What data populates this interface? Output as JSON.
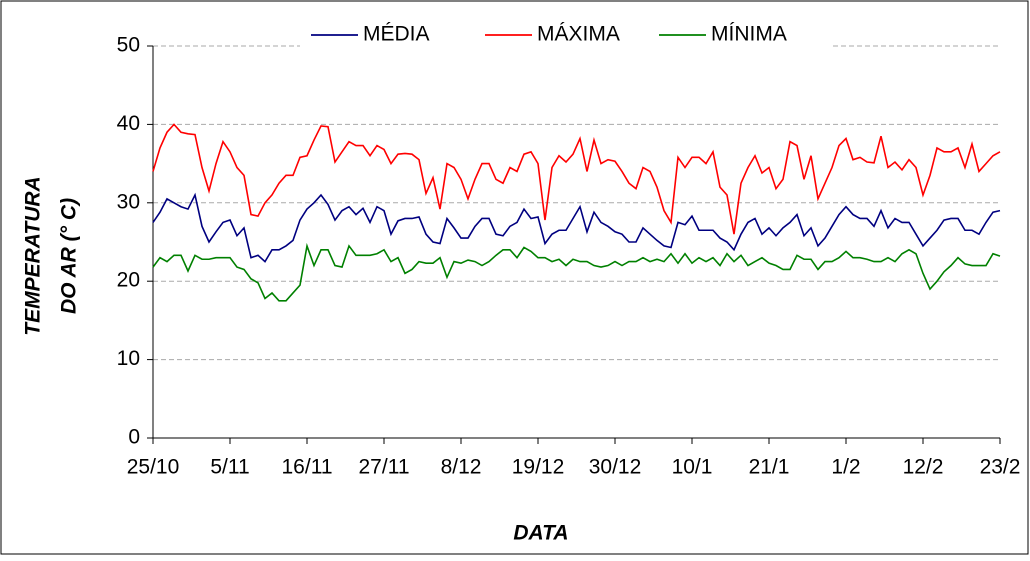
{
  "chart_data": {
    "type": "line",
    "x_label": "DATA",
    "y_label": [
      "TEMPERATURA",
      "DO AR (° C)"
    ],
    "categories": [
      "25/10",
      null,
      null,
      null,
      null,
      null,
      null,
      null,
      null,
      null,
      null,
      "5/11",
      null,
      null,
      null,
      null,
      null,
      null,
      null,
      null,
      null,
      null,
      "16/11",
      null,
      null,
      null,
      null,
      null,
      null,
      null,
      null,
      null,
      null,
      "27/11",
      null,
      null,
      null,
      null,
      null,
      null,
      null,
      null,
      null,
      null,
      "8/12",
      null,
      null,
      null,
      null,
      null,
      null,
      null,
      null,
      null,
      null,
      "19/12",
      null,
      null,
      null,
      null,
      null,
      null,
      null,
      null,
      null,
      null,
      "30/12",
      null,
      null,
      null,
      null,
      null,
      null,
      null,
      null,
      null,
      null,
      "10/1",
      null,
      null,
      null,
      null,
      null,
      null,
      null,
      null,
      null,
      null,
      "21/1",
      null,
      null,
      null,
      null,
      null,
      null,
      null,
      null,
      null,
      null,
      "1/2",
      null,
      null,
      null,
      null,
      null,
      null,
      null,
      null,
      null,
      null,
      "12/2",
      null,
      null,
      null,
      null,
      null,
      null,
      null,
      null,
      null,
      null,
      "23/2"
    ],
    "series": [
      {
        "name": "MÉDIA",
        "color": "#000080",
        "values": [
          27.5,
          28.8,
          30.5,
          30,
          29.5,
          29.2,
          31,
          27,
          25,
          26.3,
          27.5,
          27.8,
          25.8,
          26.8,
          23,
          23.3,
          22.5,
          24,
          24,
          24.5,
          25.2,
          27.8,
          29.2,
          30,
          31,
          29.8,
          27.8,
          29,
          29.5,
          28.5,
          29.3,
          27.5,
          29.5,
          29,
          26,
          27.7,
          28,
          28,
          28.2,
          26,
          25,
          24.8,
          28,
          26.8,
          25.5,
          25.5,
          27,
          28,
          28,
          26,
          25.8,
          27,
          27.5,
          29.2,
          28,
          28.2,
          24.8,
          26,
          26.5,
          26.5,
          28,
          29.5,
          26.3,
          28.8,
          27.5,
          27,
          26.3,
          26,
          25,
          25,
          26.8,
          26,
          25.2,
          24.5,
          24.3,
          27.5,
          27.2,
          28.3,
          26.5,
          26.5,
          26.5,
          25.5,
          25,
          24,
          26,
          27.5,
          28,
          26,
          26.8,
          25.8,
          26.8,
          27.5,
          28.5,
          25.8,
          26.8,
          24.5,
          25.5,
          27,
          28.5,
          29.5,
          28.5,
          28,
          28,
          27,
          29,
          26.8,
          28,
          27.5,
          27.5,
          26,
          24.5,
          25.5,
          26.5,
          27.8,
          28,
          28,
          26.5,
          26.5,
          26,
          27.5,
          28.8,
          29
        ]
      },
      {
        "name": "MÁXIMA",
        "color": "#ff0000",
        "values": [
          34,
          37,
          39,
          40,
          39,
          38.8,
          38.7,
          34.5,
          31.5,
          35,
          37.8,
          36.5,
          34.5,
          33.5,
          28.5,
          28.3,
          30,
          31,
          32.5,
          33.5,
          33.5,
          35.8,
          36,
          38,
          39.8,
          39.7,
          35.2,
          36.5,
          37.8,
          37.3,
          37.3,
          36,
          37.3,
          36.8,
          35,
          36.2,
          36.3,
          36.2,
          35.5,
          31.2,
          33.2,
          29.2,
          35,
          34.5,
          33,
          30.5,
          33,
          35,
          35,
          33,
          32.5,
          34.5,
          34,
          36.2,
          36.5,
          35,
          27.8,
          34.5,
          36,
          35.2,
          36.2,
          38.2,
          34,
          38,
          35,
          35.5,
          35.3,
          34,
          32.5,
          31.8,
          34.5,
          34,
          32,
          29,
          27.5,
          35.8,
          34.5,
          35.8,
          35.8,
          35,
          36.5,
          32,
          31,
          26,
          32.5,
          34.5,
          36,
          33.8,
          34.5,
          31.8,
          33,
          37.8,
          37.3,
          33,
          36,
          30.5,
          32.5,
          34.5,
          37.3,
          38.2,
          35.5,
          35.8,
          35.2,
          35.1,
          38.5,
          34.5,
          35.2,
          34.2,
          35.5,
          34.5,
          31,
          33.5,
          37,
          36.5,
          36.5,
          37,
          34.5,
          37.5,
          34,
          35,
          36,
          36.5
        ]
      },
      {
        "name": "MÍNIMA",
        "color": "#008000",
        "values": [
          21.8,
          23,
          22.5,
          23.3,
          23.3,
          21.3,
          23.3,
          22.8,
          22.8,
          23,
          23,
          23,
          21.8,
          21.5,
          20.3,
          19.8,
          17.8,
          18.5,
          17.5,
          17.5,
          18.5,
          19.5,
          24.5,
          22,
          24,
          24,
          22,
          21.8,
          24.5,
          23.3,
          23.3,
          23.3,
          23.5,
          24,
          22.5,
          23,
          21,
          21.5,
          22.5,
          22.3,
          22.3,
          23,
          20.5,
          22.5,
          22.3,
          22.7,
          22.5,
          22,
          22.5,
          23.3,
          24,
          24,
          23,
          24.3,
          23.8,
          23,
          23,
          22.5,
          22.8,
          22,
          22.8,
          22.5,
          22.5,
          22,
          21.8,
          22,
          22.5,
          22,
          22.5,
          22.5,
          23,
          22.5,
          22.8,
          22.5,
          23.5,
          22.3,
          23.5,
          22.3,
          23,
          22.5,
          23,
          22,
          23.5,
          22.5,
          23.3,
          22,
          22.5,
          23,
          22.3,
          22,
          21.5,
          21.5,
          23.3,
          22.8,
          22.8,
          21.5,
          22.5,
          22.5,
          23,
          23.8,
          23,
          23,
          22.8,
          22.5,
          22.5,
          23,
          22.5,
          23.5,
          24,
          23.5,
          21,
          19,
          20,
          21.2,
          22,
          23,
          22.2,
          22,
          22,
          22,
          23.5,
          23.2
        ]
      }
    ],
    "ylim": [
      0,
      50
    ],
    "yticks": [
      0,
      10,
      20,
      30,
      40,
      50
    ],
    "grid": true
  }
}
